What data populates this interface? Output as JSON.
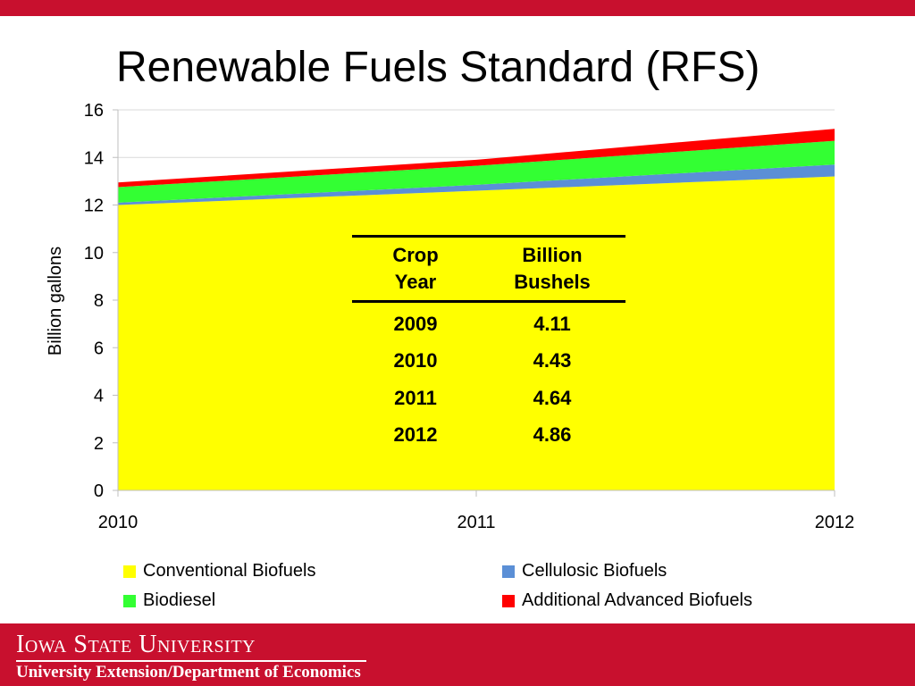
{
  "slide": {
    "title": "Renewable Fuels Standard (RFS)"
  },
  "chart_data": {
    "type": "area",
    "stacked": true,
    "x": [
      "2010",
      "2011",
      "2012"
    ],
    "ylabel": "Billion gallons",
    "ylim": [
      0,
      16
    ],
    "yticks": [
      0,
      2,
      4,
      6,
      8,
      10,
      12,
      14,
      16
    ],
    "grid": true,
    "legend_position": "bottom",
    "series": [
      {
        "name": "Conventional Biofuels",
        "color": "#ffff00",
        "values": [
          12.0,
          12.6,
          13.2
        ]
      },
      {
        "name": "Cellulosic Biofuels",
        "color": "#5b8fd6",
        "values": [
          0.1,
          0.25,
          0.5
        ]
      },
      {
        "name": "Biodiesel",
        "color": "#33ff33",
        "values": [
          0.65,
          0.8,
          1.0
        ]
      },
      {
        "name": "Additional Advanced Biofuels",
        "color": "#ff0000",
        "values": [
          0.2,
          0.25,
          0.5
        ]
      }
    ]
  },
  "table": {
    "headers": [
      [
        "Crop",
        "Year"
      ],
      [
        "Billion",
        "Bushels"
      ]
    ],
    "rows": [
      [
        "2009",
        "4.11"
      ],
      [
        "2010",
        "4.43"
      ],
      [
        "2011",
        "4.64"
      ],
      [
        "2012",
        "4.86"
      ]
    ]
  },
  "footer": {
    "university": "Iowa State University",
    "department": "University Extension/Department of Economics"
  }
}
